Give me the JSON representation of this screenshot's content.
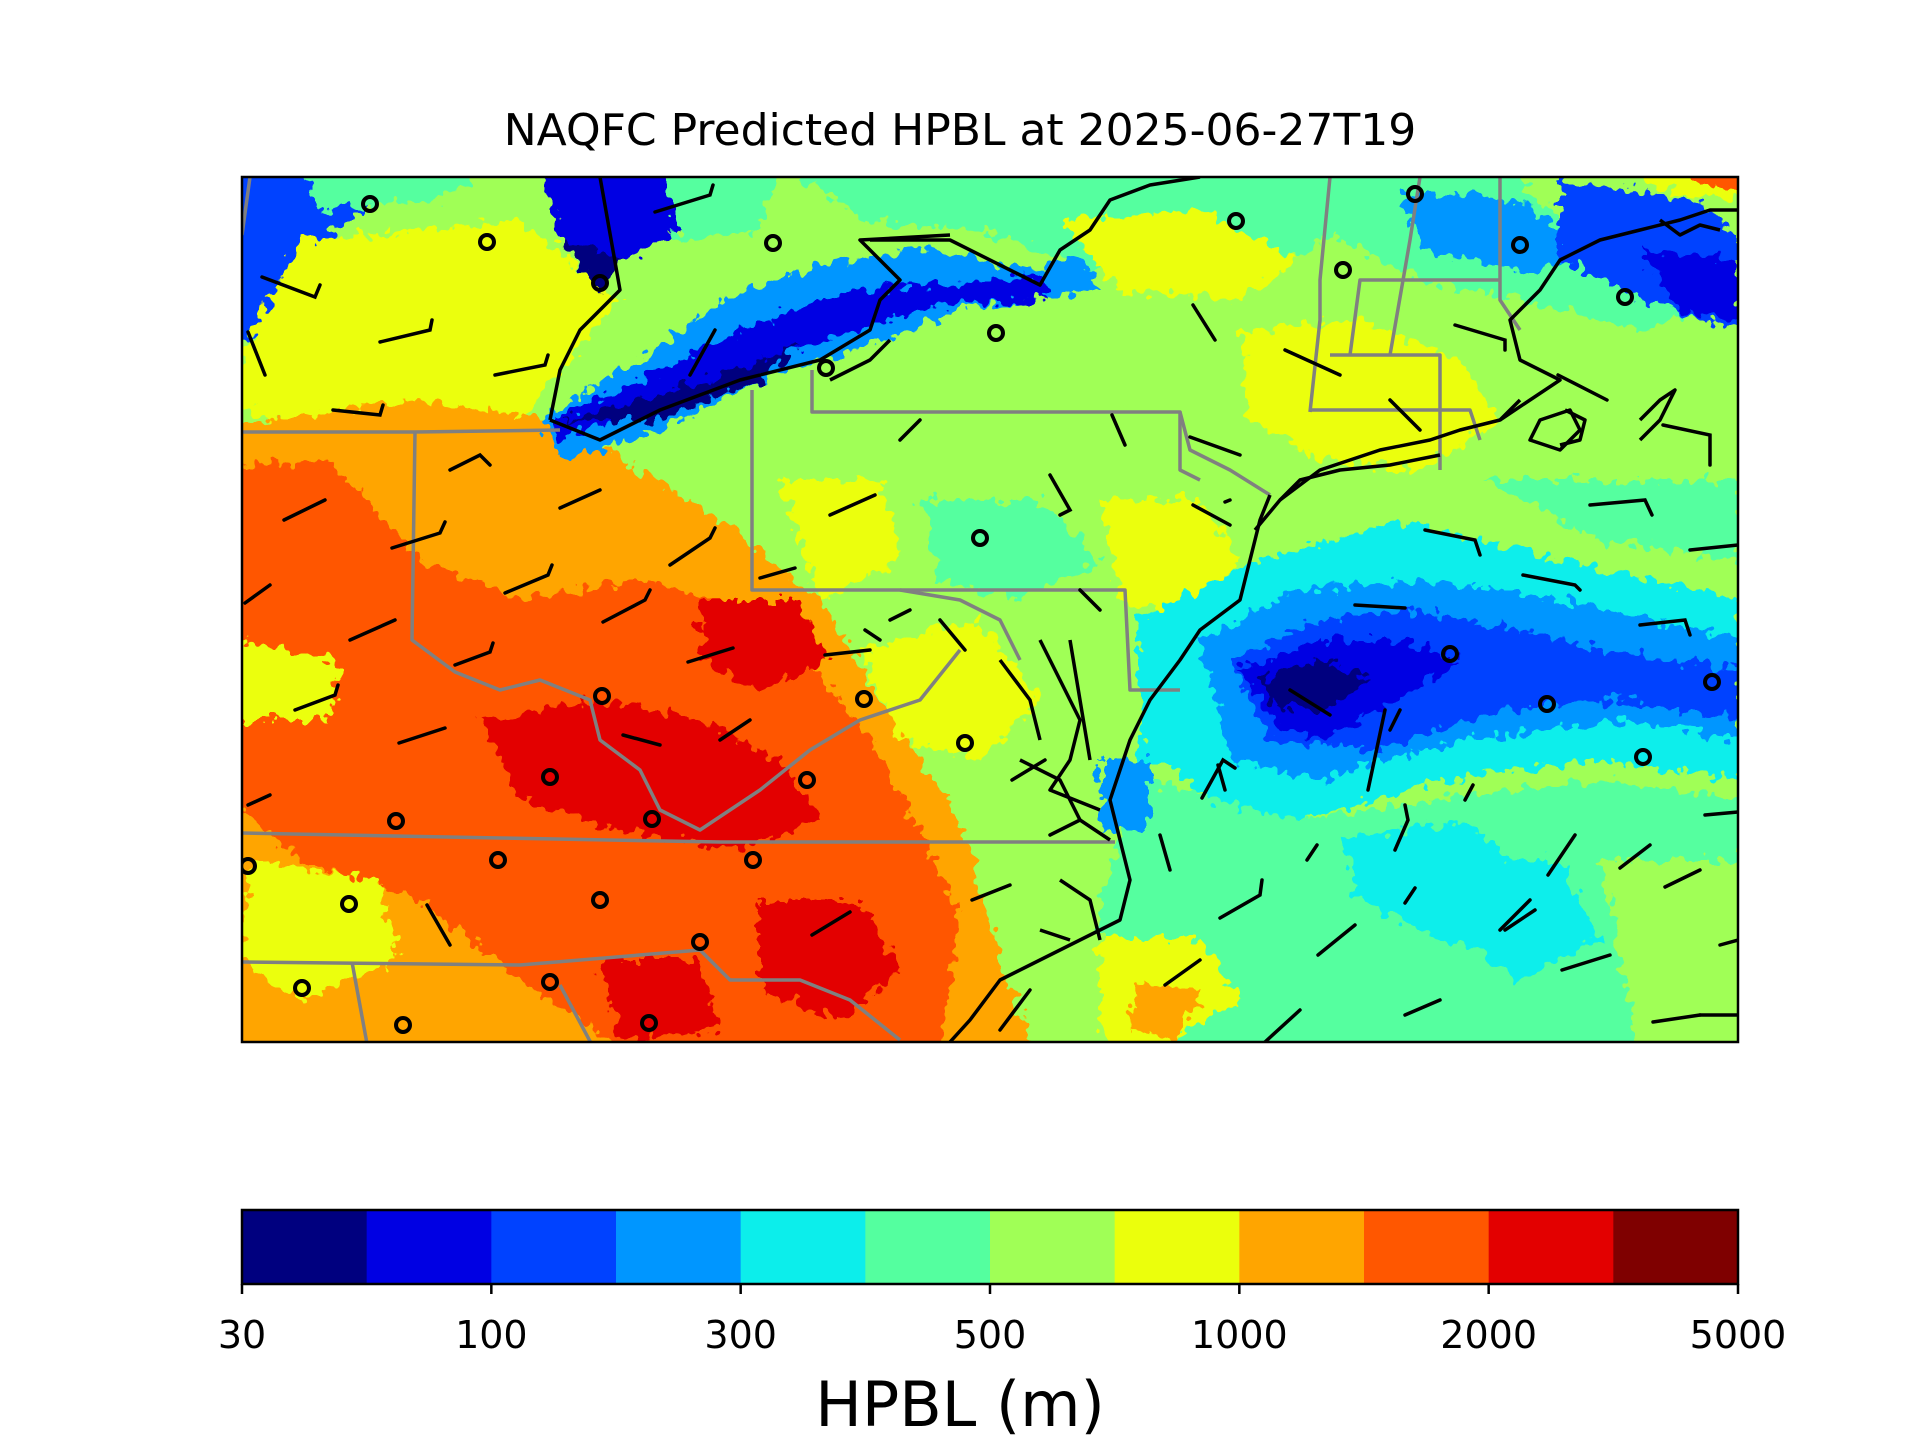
{
  "title": "NAQFC Predicted HPBL at 2025-06-27T19",
  "colorbar": {
    "label": "HPBL (m)",
    "tick_labels": [
      "30",
      "100",
      "300",
      "500",
      "1000",
      "2000",
      "5000"
    ],
    "colors": [
      "#00007f",
      "#0000e3",
      "#0042ff",
      "#0096ff",
      "#0ceeeb",
      "#54ff9f",
      "#a0ff56",
      "#ebff0c",
      "#ffa500",
      "#ff5700",
      "#e30000",
      "#7f0000"
    ]
  },
  "chart_data": {
    "type": "heatmap",
    "variable": "HPBL",
    "units": "m",
    "valid_time": "2025-06-27T19",
    "colorbar_bounds": [
      30,
      100,
      300,
      500,
      1000,
      2000,
      5000
    ],
    "colormap": "jet"
  }
}
